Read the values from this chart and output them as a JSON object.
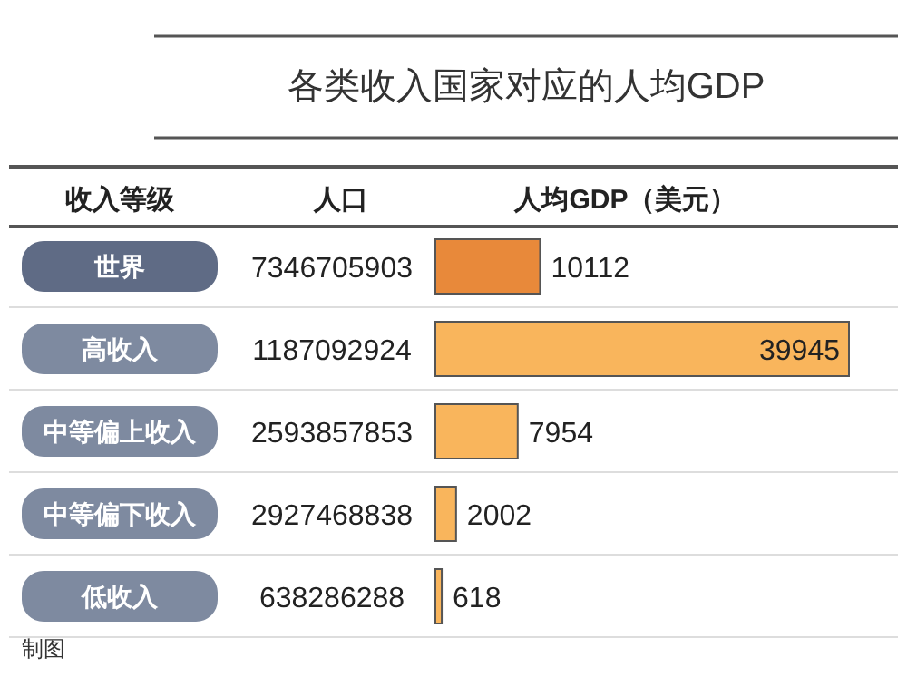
{
  "chart_data": {
    "type": "bar",
    "orientation": "horizontal",
    "title": "各类收入国家对应的人均GDP",
    "ylabel": "收入等级",
    "xlabel": "人均GDP（美元）",
    "categories": [
      "世界",
      "高收入",
      "中等偏上收入",
      "中等偏下收入",
      "低收入"
    ],
    "values": [
      10112,
      39945,
      7954,
      2002,
      618
    ],
    "colors": [
      "#e8893a",
      "#f9b55c",
      "#f9b55c",
      "#f9b55c",
      "#f9b55c"
    ],
    "data_labels": true,
    "annotations": [
      "人口",
      "7346705903",
      "1187092924",
      "2593857853",
      "2927468838",
      "638286288",
      "制图"
    ]
  }
}
